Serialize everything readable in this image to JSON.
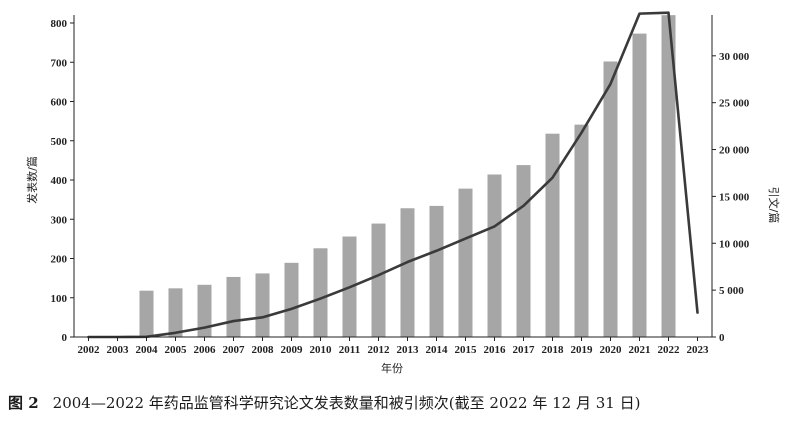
{
  "chart_data": {
    "type": "bar+line",
    "categories": [
      "2002",
      "2003",
      "2004",
      "2005",
      "2006",
      "2007",
      "2008",
      "2009",
      "2010",
      "2011",
      "2012",
      "2013",
      "2014",
      "2015",
      "2016",
      "2017",
      "2018",
      "2019",
      "2020",
      "2021",
      "2022",
      "2023"
    ],
    "series": [
      {
        "name": "发表数/篇",
        "type": "bar",
        "axis": "left",
        "color": "#a6a6a6",
        "values": [
          null,
          null,
          118,
          124,
          133,
          153,
          162,
          189,
          226,
          256,
          289,
          328,
          334,
          378,
          414,
          438,
          518,
          541,
          702,
          773,
          820,
          null
        ]
      },
      {
        "name": "引文/篇",
        "type": "line",
        "axis": "right",
        "color": "#3a3a3a",
        "values": [
          0,
          0,
          20,
          450,
          1000,
          1700,
          2100,
          3000,
          4100,
          5300,
          6600,
          8000,
          9200,
          10500,
          11800,
          14000,
          17000,
          21800,
          27000,
          34500,
          34600,
          2600
        ]
      }
    ],
    "xlabel": "年份",
    "ylabel_left": "发表数/篇",
    "ylabel_right": "引文/篇",
    "ylim_left": [
      0,
      800
    ],
    "ylim_right": [
      0,
      33500
    ],
    "yticks_left": [
      "0",
      "100",
      "200",
      "300",
      "400",
      "500",
      "600",
      "700",
      "800"
    ],
    "yticks_right": [
      {
        "label": "0",
        "value": 0
      },
      {
        "label": "5 000",
        "value": 5000
      },
      {
        "label": "10 000",
        "value": 10000
      },
      {
        "label": "15 000",
        "value": 15000
      },
      {
        "label": "20 000",
        "value": 20000
      },
      {
        "label": "25 000",
        "value": 25000
      },
      {
        "label": "30 000",
        "value": 30000
      }
    ]
  },
  "caption": {
    "figure_label": "图 2",
    "text": "2004—2022 年药品监管科学研究论文发表数量和被引频次(截至 2022 年 12 月 31 日)"
  }
}
